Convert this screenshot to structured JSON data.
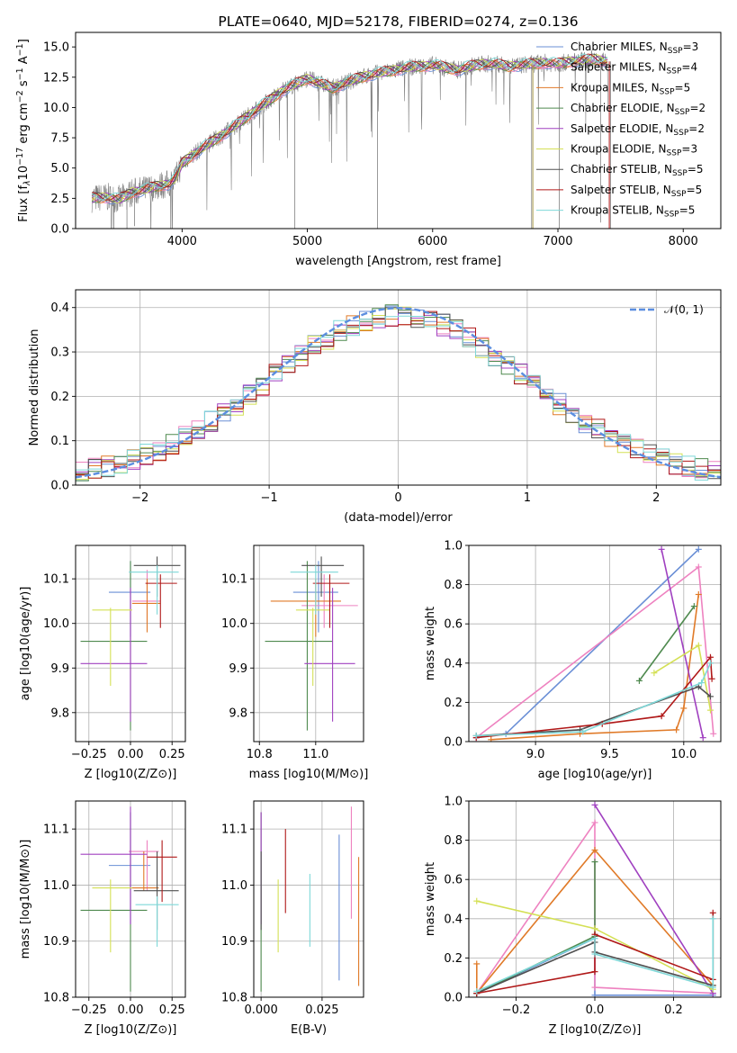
{
  "colors": {
    "chabrier_miles": "#6a8fd6",
    "salpeter_miles": "#ee82c0",
    "kroupa_miles": "#e07a28",
    "chabrier_elodie": "#4f8a4f",
    "salpeter_elodie": "#a040c0",
    "kroupa_elodie": "#d4e055",
    "chabrier_stelib": "#505050",
    "salpeter_stelib": "#b01818",
    "kroupa_stelib": "#7ed8d8",
    "normal_curve": "#5b8ee0",
    "data_spectrum": "#808080"
  },
  "chart_data": [
    {
      "id": "spectrum",
      "type": "line",
      "title": "PLATE=0640, MJD=52178, FIBERID=0274, z=0.136",
      "xlabel": "wavelength [Angstrom, rest frame]",
      "ylabel_parts": [
        "Flux [f",
        "λ",
        "10",
        "−17",
        " erg cm",
        "−2",
        " s",
        "−1",
        " A",
        "−1",
        "]"
      ],
      "xlim": [
        3150,
        8300
      ],
      "ylim": [
        0,
        16.2
      ],
      "xticks": [
        4000,
        5000,
        6000,
        7000,
        8000
      ],
      "yticks": [
        0.0,
        2.5,
        5.0,
        7.5,
        10.0,
        12.5,
        15.0
      ],
      "ytick_labels": [
        "0.0",
        "2.5",
        "5.0",
        "7.5",
        "10.0",
        "12.5",
        "15.0"
      ],
      "grid": false,
      "legend_placement": "upper-right",
      "legend": [
        {
          "name": "Chabrier MILES, N",
          "sub": "SSP",
          "val": "=3",
          "color_key": "chabrier_miles"
        },
        {
          "name": "Salpeter MILES, N",
          "sub": "SSP",
          "val": "=4",
          "color_key": "salpeter_miles"
        },
        {
          "name": "Kroupa MILES, N",
          "sub": "SSP",
          "val": "=5",
          "color_key": "kroupa_miles"
        },
        {
          "name": "Chabrier ELODIE, N",
          "sub": "SSP",
          "val": "=2",
          "color_key": "chabrier_elodie"
        },
        {
          "name": "Salpeter ELODIE, N",
          "sub": "SSP",
          "val": "=2",
          "color_key": "salpeter_elodie"
        },
        {
          "name": "Kroupa ELODIE, N",
          "sub": "SSP",
          "val": "=3",
          "color_key": "kroupa_elodie"
        },
        {
          "name": "Chabrier STELIB, N",
          "sub": "SSP",
          "val": "=5",
          "color_key": "chabrier_stelib"
        },
        {
          "name": "Salpeter STELIB, N",
          "sub": "SSP",
          "val": "=5",
          "color_key": "salpeter_stelib"
        },
        {
          "name": "Kroupa STELIB, N",
          "sub": "SSP",
          "val": "=5",
          "color_key": "kroupa_stelib"
        }
      ],
      "continuum": {
        "x": [
          3280,
          3400,
          3500,
          3600,
          3700,
          3800,
          3900,
          3950,
          4000,
          4100,
          4200,
          4300,
          4400,
          4500,
          4600,
          4700,
          4800,
          4900,
          5000,
          5100,
          5200,
          5300,
          5400,
          5500,
          5600,
          5700,
          5800,
          5900,
          6000,
          6100,
          6200,
          6300,
          6400,
          6500,
          6600,
          6700,
          6800,
          6900,
          7000,
          7100,
          7200,
          7300,
          7400
        ],
        "y": [
          2.5,
          2.6,
          2.4,
          3.0,
          3.2,
          3.5,
          3.7,
          4.2,
          5.4,
          6.2,
          6.9,
          7.6,
          8.3,
          9.1,
          9.9,
          10.6,
          11.4,
          11.9,
          12.4,
          12.0,
          11.6,
          12.0,
          12.4,
          12.7,
          12.9,
          13.1,
          13.3,
          13.4,
          13.5,
          13.3,
          13.1,
          13.4,
          13.6,
          13.6,
          13.4,
          13.5,
          13.6,
          13.7,
          13.6,
          13.8,
          13.9,
          14.0,
          13.8
        ]
      }
    },
    {
      "id": "residuals",
      "type": "histogram",
      "xlabel": "(data-model)/error",
      "ylabel": "Normed distribution",
      "xlim": [
        -2.5,
        2.5
      ],
      "ylim": [
        0,
        0.44
      ],
      "xticks": [
        -2,
        -1,
        0,
        1,
        2
      ],
      "xtick_labels": [
        "−2",
        "−1",
        "0",
        "1",
        "2"
      ],
      "yticks": [
        0.0,
        0.1,
        0.2,
        0.3,
        0.4
      ],
      "ytick_labels": [
        "0.0",
        "0.1",
        "0.2",
        "0.3",
        "0.4"
      ],
      "grid": true,
      "bin_width": 0.1,
      "legend_placement": "upper-right",
      "legend_label": "𝒩(0, 1)"
    },
    {
      "id": "age_vs_Z",
      "type": "errorbar",
      "xlabel": "Z [log10(Z/Z⊙)]",
      "ylabel": "age  [log10(age/yr)]",
      "xlim": [
        -0.33,
        0.33
      ],
      "ylim": [
        9.735,
        10.175
      ],
      "xticks": [
        -0.25,
        0.0,
        0.25
      ],
      "xtick_labels": [
        "−0.25",
        "0.00",
        "0.25"
      ],
      "yticks": [
        9.8,
        9.9,
        10.0,
        10.1
      ],
      "ytick_labels": [
        "9.8",
        "9.9",
        "10.0",
        "10.1"
      ],
      "grid": true,
      "points": [
        {
          "x": 0.0,
          "y": 10.07,
          "xlo": -0.13,
          "xhi": 0.12,
          "ylo": 9.97,
          "yhi": 10.14,
          "color_key": "chabrier_miles"
        },
        {
          "x": 0.1,
          "y": 10.05,
          "xlo": 0.01,
          "xhi": 0.18,
          "ylo": 10.0,
          "yhi": 10.12,
          "color_key": "salpeter_miles"
        },
        {
          "x": 0.1,
          "y": 10.045,
          "xlo": 0.01,
          "xhi": 0.18,
          "ylo": 9.98,
          "yhi": 10.1,
          "color_key": "kroupa_miles"
        },
        {
          "x": 0.0,
          "y": 9.96,
          "xlo": -0.3,
          "xhi": 0.1,
          "ylo": 9.76,
          "yhi": 10.14,
          "color_key": "chabrier_elodie"
        },
        {
          "x": 0.0,
          "y": 9.91,
          "xlo": -0.3,
          "xhi": 0.1,
          "ylo": 9.78,
          "yhi": 10.08,
          "color_key": "salpeter_elodie"
        },
        {
          "x": -0.12,
          "y": 10.03,
          "xlo": -0.23,
          "xhi": 0.01,
          "ylo": 9.86,
          "yhi": 10.035,
          "color_key": "kroupa_elodie"
        },
        {
          "x": 0.16,
          "y": 10.13,
          "xlo": 0.02,
          "xhi": 0.3,
          "ylo": 10.06,
          "yhi": 10.15,
          "color_key": "chabrier_stelib"
        },
        {
          "x": 0.18,
          "y": 10.09,
          "xlo": 0.09,
          "xhi": 0.28,
          "ylo": 9.99,
          "yhi": 10.11,
          "color_key": "salpeter_stelib"
        },
        {
          "x": 0.16,
          "y": 10.115,
          "xlo": -0.01,
          "xhi": 0.29,
          "ylo": 10.02,
          "yhi": 10.13,
          "color_key": "kroupa_stelib"
        }
      ]
    },
    {
      "id": "age_vs_mass",
      "type": "errorbar",
      "xlabel": "mass [log10(M/M⊙)]",
      "ylim": [
        9.735,
        10.175
      ],
      "xlim": [
        10.78,
        11.17
      ],
      "xticks": [
        10.8,
        11.0
      ],
      "xtick_labels": [
        "10.8",
        "11.0"
      ],
      "yticks": [
        9.8,
        9.9,
        10.0,
        10.1
      ],
      "ytick_labels": [
        "9.8",
        "9.9",
        "10.0",
        "10.1"
      ],
      "grid": true,
      "points": [
        {
          "x": 11.01,
          "y": 10.07,
          "xlo": 10.92,
          "xhi": 11.08,
          "ylo": 9.98,
          "yhi": 10.14,
          "color_key": "chabrier_miles"
        },
        {
          "x": 11.03,
          "y": 10.04,
          "xlo": 10.95,
          "xhi": 11.15,
          "ylo": 9.99,
          "yhi": 10.11,
          "color_key": "salpeter_miles"
        },
        {
          "x": 11.0,
          "y": 10.05,
          "xlo": 10.84,
          "xhi": 11.09,
          "ylo": 9.97,
          "yhi": 10.1,
          "color_key": "kroupa_miles"
        },
        {
          "x": 10.97,
          "y": 9.96,
          "xlo": 10.82,
          "xhi": 11.06,
          "ylo": 9.76,
          "yhi": 10.14,
          "color_key": "chabrier_elodie"
        },
        {
          "x": 11.06,
          "y": 9.91,
          "xlo": 10.96,
          "xhi": 11.14,
          "ylo": 9.78,
          "yhi": 10.08,
          "color_key": "salpeter_elodie"
        },
        {
          "x": 10.99,
          "y": 10.03,
          "xlo": 10.93,
          "xhi": 11.05,
          "ylo": 9.86,
          "yhi": 10.035,
          "color_key": "kroupa_elodie"
        },
        {
          "x": 11.02,
          "y": 10.13,
          "xlo": 10.95,
          "xhi": 11.1,
          "ylo": 10.06,
          "yhi": 10.15,
          "color_key": "chabrier_stelib"
        },
        {
          "x": 11.05,
          "y": 10.09,
          "xlo": 10.99,
          "xhi": 11.12,
          "ylo": 9.99,
          "yhi": 10.11,
          "color_key": "salpeter_stelib"
        },
        {
          "x": 11.0,
          "y": 10.115,
          "xlo": 10.91,
          "xhi": 11.08,
          "ylo": 10.02,
          "yhi": 10.13,
          "color_key": "kroupa_stelib"
        }
      ]
    },
    {
      "id": "weight_vs_age",
      "type": "line",
      "xlabel": "age  [log10(age/yr)]",
      "ylabel": "mass weight",
      "xlim": [
        8.55,
        10.25
      ],
      "ylim": [
        0,
        1
      ],
      "xticks": [
        9.0,
        9.5,
        10.0
      ],
      "xtick_labels": [
        "9.0",
        "9.5",
        "10.0"
      ],
      "yticks": [
        0.0,
        0.2,
        0.4,
        0.6,
        0.8,
        1.0
      ],
      "ytick_labels": [
        "0.0",
        "0.2",
        "0.4",
        "0.6",
        "0.8",
        "1.0"
      ],
      "grid": true,
      "series": [
        {
          "color_key": "chabrier_miles",
          "x": [
            8.6,
            8.8,
            10.1
          ],
          "y": [
            0.02,
            0.04,
            0.98
          ]
        },
        {
          "color_key": "salpeter_miles",
          "x": [
            8.6,
            10.1,
            10.2
          ],
          "y": [
            0.02,
            0.89,
            0.04
          ]
        },
        {
          "color_key": "kroupa_miles",
          "x": [
            8.7,
            9.3,
            9.95,
            10.0,
            10.1
          ],
          "y": [
            0.01,
            0.04,
            0.06,
            0.17,
            0.75
          ]
        },
        {
          "color_key": "chabrier_elodie",
          "x": [
            9.7,
            10.07
          ],
          "y": [
            0.31,
            0.69
          ]
        },
        {
          "color_key": "salpeter_elodie",
          "x": [
            9.85,
            10.13
          ],
          "y": [
            0.98,
            0.02
          ]
        },
        {
          "color_key": "kroupa_elodie",
          "x": [
            9.8,
            10.1,
            10.18
          ],
          "y": [
            0.35,
            0.49,
            0.16
          ]
        },
        {
          "color_key": "chabrier_stelib",
          "x": [
            8.6,
            9.3,
            10.1,
            10.18
          ],
          "y": [
            0.03,
            0.06,
            0.28,
            0.23
          ]
        },
        {
          "color_key": "salpeter_stelib",
          "x": [
            8.6,
            9.45,
            9.85,
            10.18,
            10.19
          ],
          "y": [
            0.02,
            0.09,
            0.13,
            0.43,
            0.32
          ]
        },
        {
          "color_key": "kroupa_stelib",
          "x": [
            8.6,
            9.32,
            10.12,
            10.18
          ],
          "y": [
            0.03,
            0.05,
            0.3,
            0.4
          ]
        }
      ]
    },
    {
      "id": "mass_vs_Z",
      "type": "errorbar",
      "xlabel": "Z [log10(Z/Z⊙)]",
      "ylabel": "mass [log10(M/M⊙)]",
      "xlim": [
        -0.33,
        0.33
      ],
      "ylim": [
        10.8,
        11.15
      ],
      "xticks": [
        -0.25,
        0.0,
        0.25
      ],
      "xtick_labels": [
        "−0.25",
        "0.00",
        "0.25"
      ],
      "yticks": [
        10.8,
        10.9,
        11.0,
        11.1
      ],
      "ytick_labels": [
        "10.8",
        "10.9",
        "11.0",
        "11.1"
      ],
      "grid": true,
      "points": [
        {
          "x": 0.0,
          "y": 11.035,
          "xlo": -0.13,
          "xhi": 0.12,
          "ylo": 10.93,
          "yhi": 11.13,
          "color_key": "chabrier_miles"
        },
        {
          "x": 0.1,
          "y": 11.06,
          "xlo": -0.01,
          "xhi": 0.17,
          "ylo": 10.99,
          "yhi": 11.08,
          "color_key": "salpeter_miles"
        },
        {
          "x": 0.08,
          "y": 10.995,
          "xlo": 0.0,
          "xhi": 0.17,
          "ylo": 10.99,
          "yhi": 11.06,
          "color_key": "kroupa_miles"
        },
        {
          "x": 0.0,
          "y": 10.955,
          "xlo": -0.3,
          "xhi": 0.1,
          "ylo": 10.81,
          "yhi": 11.13,
          "color_key": "chabrier_elodie"
        },
        {
          "x": 0.0,
          "y": 11.055,
          "xlo": -0.3,
          "xhi": 0.1,
          "ylo": 10.93,
          "yhi": 11.14,
          "color_key": "salpeter_elodie"
        },
        {
          "x": -0.12,
          "y": 10.995,
          "xlo": -0.23,
          "xhi": 0.01,
          "ylo": 10.88,
          "yhi": 11.01,
          "color_key": "kroupa_elodie"
        },
        {
          "x": 0.16,
          "y": 10.99,
          "xlo": 0.02,
          "xhi": 0.29,
          "ylo": 10.92,
          "yhi": 11.06,
          "color_key": "chabrier_stelib"
        },
        {
          "x": 0.19,
          "y": 11.05,
          "xlo": 0.1,
          "xhi": 0.28,
          "ylo": 10.97,
          "yhi": 11.08,
          "color_key": "salpeter_stelib"
        },
        {
          "x": 0.16,
          "y": 10.965,
          "xlo": 0.03,
          "xhi": 0.29,
          "ylo": 10.89,
          "yhi": 10.98,
          "color_key": "kroupa_stelib"
        }
      ]
    },
    {
      "id": "mass_vs_ebv",
      "type": "errorbar",
      "xlabel": "E(B-V)",
      "xlim": [
        -0.003,
        0.042
      ],
      "ylim": [
        10.8,
        11.15
      ],
      "xticks": [
        0.0,
        0.025
      ],
      "xtick_labels": [
        "0.000",
        "0.025"
      ],
      "yticks": [
        10.8,
        10.9,
        11.0,
        11.1
      ],
      "ytick_labels": [
        "10.8",
        "10.9",
        "11.0",
        "11.1"
      ],
      "grid": true,
      "points": [
        {
          "x": 0.032,
          "y": 11.0,
          "ylo": 10.83,
          "yhi": 11.09,
          "color_key": "chabrier_miles"
        },
        {
          "x": 0.037,
          "y": 11.0,
          "ylo": 10.94,
          "yhi": 11.14,
          "color_key": "salpeter_miles"
        },
        {
          "x": 0.04,
          "y": 10.95,
          "ylo": 10.82,
          "yhi": 11.05,
          "color_key": "kroupa_miles"
        },
        {
          "x": 0.0,
          "y": 10.95,
          "ylo": 10.81,
          "yhi": 11.13,
          "color_key": "chabrier_elodie"
        },
        {
          "x": 0.0,
          "y": 11.0,
          "ylo": 10.93,
          "yhi": 11.13,
          "color_key": "salpeter_elodie"
        },
        {
          "x": 0.007,
          "y": 10.95,
          "ylo": 10.88,
          "yhi": 11.01,
          "color_key": "kroupa_elodie"
        },
        {
          "x": 0.0,
          "y": 11.0,
          "ylo": 10.92,
          "yhi": 11.06,
          "color_key": "chabrier_stelib"
        },
        {
          "x": 0.01,
          "y": 11.02,
          "ylo": 10.95,
          "yhi": 11.1,
          "color_key": "salpeter_stelib"
        },
        {
          "x": 0.02,
          "y": 10.95,
          "ylo": 10.89,
          "yhi": 11.02,
          "color_key": "kroupa_stelib"
        }
      ]
    },
    {
      "id": "weight_vs_Z",
      "type": "line",
      "xlabel": "Z [log10(Z/Z⊙)]",
      "ylabel": "mass weight",
      "xlim": [
        -0.32,
        0.32
      ],
      "ylim": [
        0,
        1
      ],
      "xticks": [
        -0.2,
        0.0,
        0.2
      ],
      "xtick_labels": [
        "−0.2",
        "0.0",
        "0.2"
      ],
      "yticks": [
        0.0,
        0.2,
        0.4,
        0.6,
        0.8,
        1.0
      ],
      "ytick_labels": [
        "0.0",
        "0.2",
        "0.4",
        "0.6",
        "0.8",
        "1.0"
      ],
      "grid": true,
      "series": [
        {
          "color_key": "chabrier_miles",
          "x": [
            -0.3,
            0.0,
            0.0,
            0.3
          ],
          "y": [
            0.02,
            0.3,
            0.01,
            0.01
          ]
        },
        {
          "color_key": "salpeter_miles",
          "x": [
            -0.3,
            0.0,
            0.0,
            0.3
          ],
          "y": [
            0.02,
            0.89,
            0.05,
            0.02
          ]
        },
        {
          "color_key": "kroupa_miles",
          "x": [
            -0.3,
            -0.3,
            0.0,
            0.3
          ],
          "y": [
            0.17,
            0.02,
            0.75,
            0.06
          ]
        },
        {
          "color_key": "chabrier_elodie",
          "x": [
            -0.3,
            0.0,
            0.0
          ],
          "y": [
            0.02,
            0.31,
            0.69
          ]
        },
        {
          "color_key": "salpeter_elodie",
          "x": [
            0.0,
            0.3
          ],
          "y": [
            0.98,
            0.02
          ]
        },
        {
          "color_key": "kroupa_elodie",
          "x": [
            -0.3,
            0.0,
            0.3
          ],
          "y": [
            0.49,
            0.35,
            0.04
          ]
        },
        {
          "color_key": "chabrier_stelib",
          "x": [
            -0.3,
            0.0,
            0.0,
            0.3
          ],
          "y": [
            0.02,
            0.28,
            0.23,
            0.06
          ]
        },
        {
          "color_key": "salpeter_stelib",
          "x": [
            -0.3,
            0.0,
            0.0,
            0.3,
            0.3
          ],
          "y": [
            0.02,
            0.13,
            0.32,
            0.09,
            0.43
          ]
        },
        {
          "color_key": "kroupa_stelib",
          "x": [
            -0.3,
            0.0,
            0.0,
            0.3,
            0.3
          ],
          "y": [
            0.03,
            0.3,
            0.22,
            0.05,
            0.4
          ]
        }
      ]
    }
  ]
}
